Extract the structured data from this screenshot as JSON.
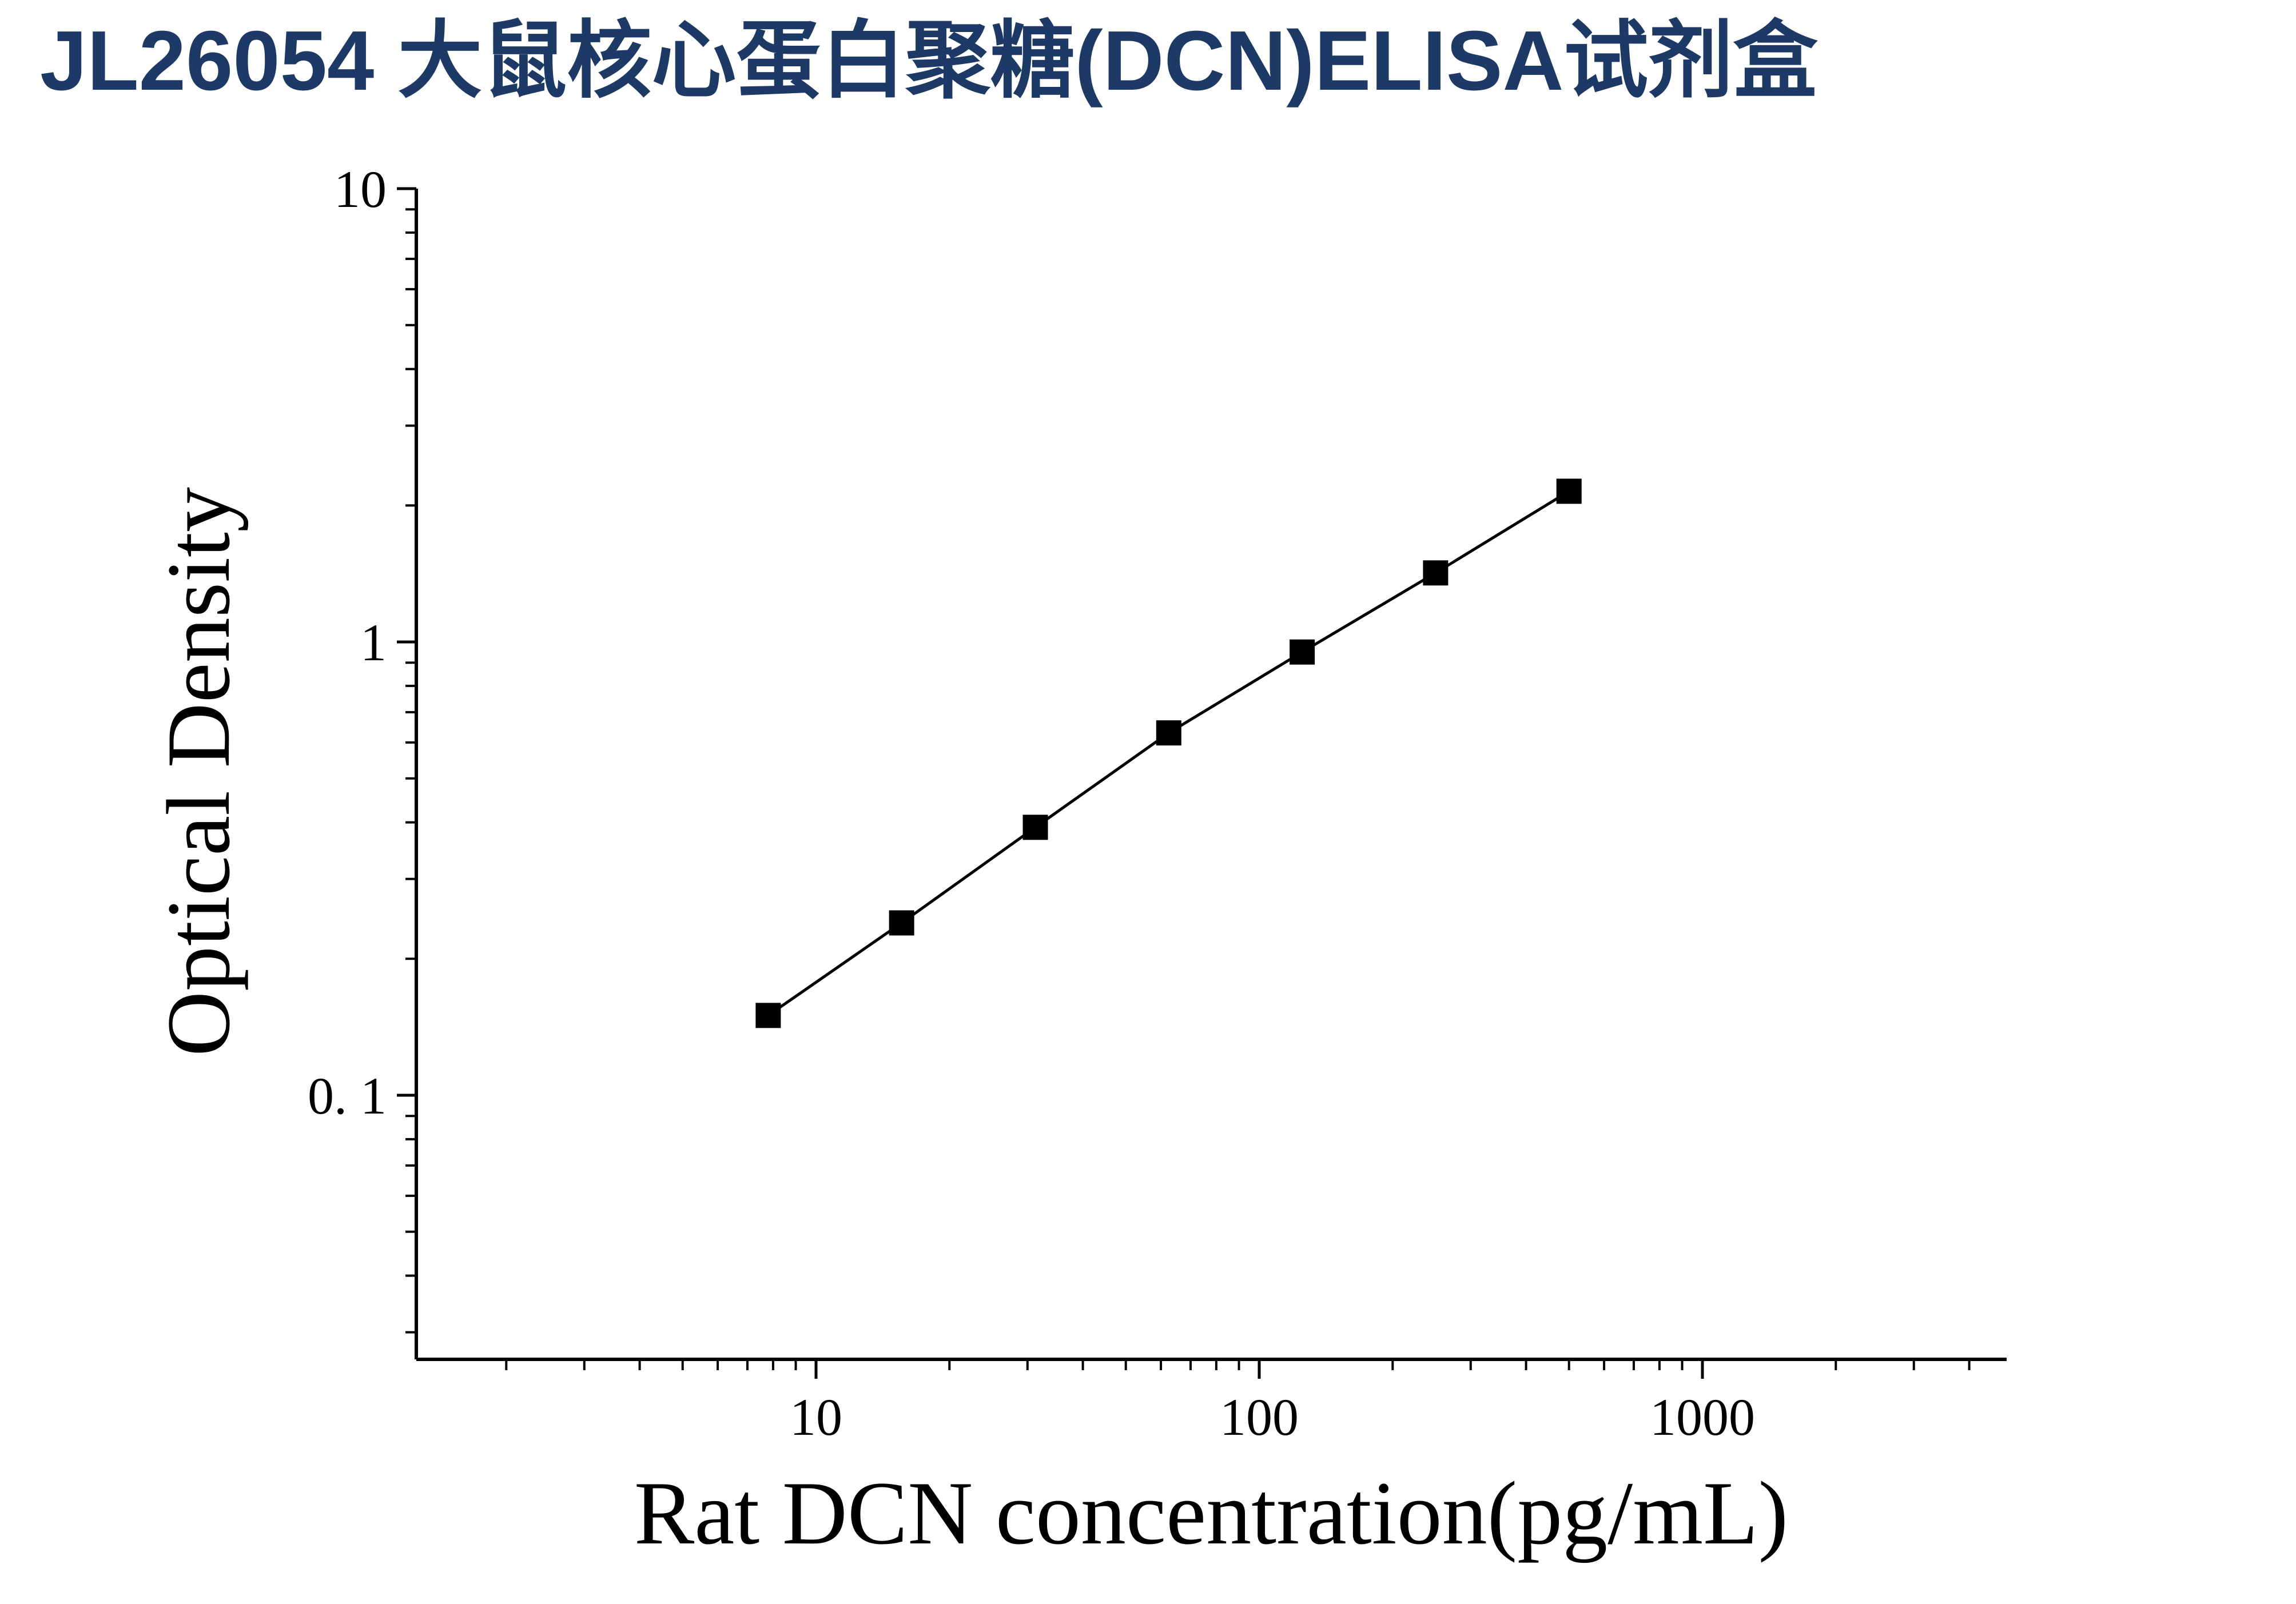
{
  "chart_data": {
    "type": "line",
    "title": "JL26054 大鼠核心蛋白聚糖(DCN)ELISA试剂盒",
    "title_color": "#1d3966",
    "xlabel": "Rat DCN concentration(pg/mL)",
    "ylabel": "Optical Density",
    "xscale": "log",
    "yscale": "log",
    "xlim": [
      1.25,
      4855
    ],
    "ylim": [
      0.026,
      10
    ],
    "x": [
      7.8,
      15.6,
      31.25,
      62.5,
      125,
      250,
      500
    ],
    "y": [
      0.15,
      0.24,
      0.39,
      0.63,
      0.95,
      1.42,
      2.15
    ],
    "xticks": [
      {
        "value": 10,
        "label": "10"
      },
      {
        "value": 100,
        "label": "100"
      },
      {
        "value": 1000,
        "label": "1000"
      }
    ],
    "yticks": [
      {
        "value": 0.1,
        "label": "0. 1"
      },
      {
        "value": 1,
        "label": "1"
      },
      {
        "value": 10,
        "label": "10"
      }
    ],
    "marker": "square",
    "marker_color": "#000000",
    "line_color": "#000000",
    "axis_color": "#000000",
    "grid": false,
    "legend": "none"
  }
}
